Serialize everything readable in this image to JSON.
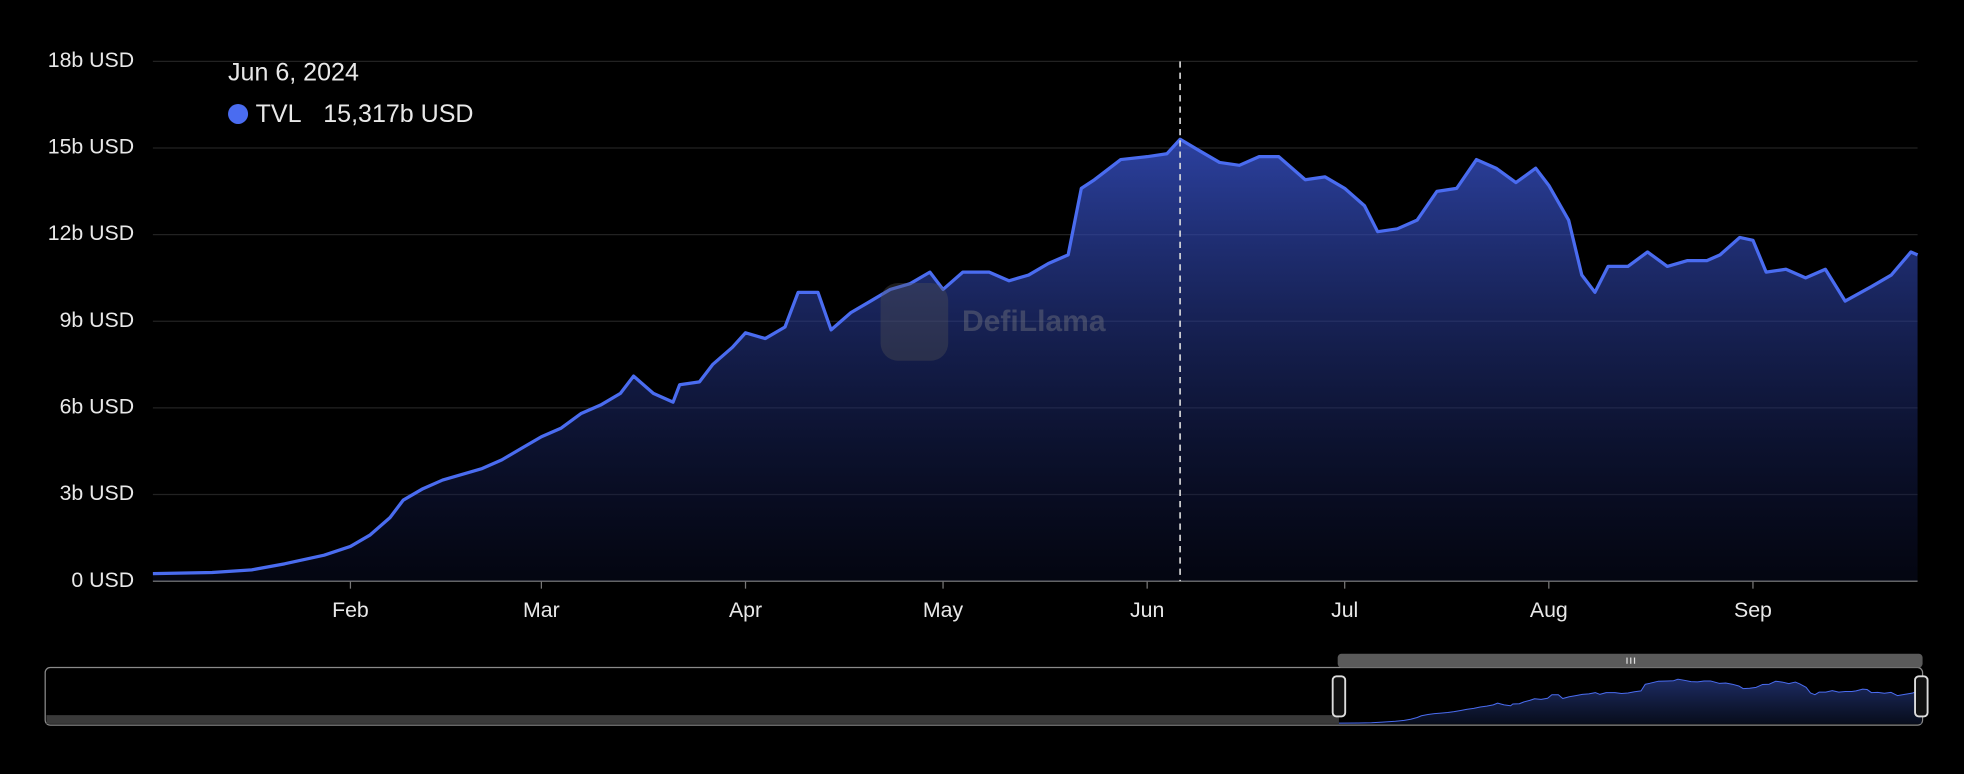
{
  "chart_data": {
    "type": "area",
    "watermark": "DefiLlama",
    "x": [
      2,
      11,
      17,
      22,
      28,
      32,
      35,
      38,
      40,
      43,
      46,
      49,
      52,
      55,
      58,
      61,
      64,
      67,
      70,
      73,
      75,
      78,
      81,
      82,
      85,
      87,
      90,
      92,
      95,
      98,
      100,
      103,
      105,
      108,
      111,
      114,
      117,
      120,
      122,
      125,
      129,
      132,
      135,
      138,
      141,
      143,
      145,
      149,
      153,
      156,
      158,
      161,
      164,
      167,
      170,
      173,
      177,
      180,
      183,
      186,
      188,
      191,
      194,
      197,
      200,
      203,
      206,
      209,
      212,
      214,
      217,
      219,
      221,
      223,
      226,
      229,
      232,
      235,
      238,
      240,
      243,
      245,
      247,
      250,
      253,
      256,
      259,
      263,
      266,
      269,
      270
    ],
    "series": [
      {
        "name": "TVL",
        "color": "#4a6cf0",
        "values": [
          0.26,
          0.3,
          0.39,
          0.6,
          0.9,
          1.2,
          1.6,
          2.2,
          2.8,
          3.2,
          3.5,
          3.7,
          3.9,
          4.2,
          4.6,
          5.0,
          5.3,
          5.8,
          6.1,
          6.5,
          7.1,
          6.5,
          6.2,
          6.8,
          6.9,
          7.5,
          8.1,
          8.6,
          8.4,
          8.8,
          10.0,
          10.0,
          8.7,
          9.3,
          9.7,
          10.1,
          10.3,
          10.7,
          10.1,
          10.7,
          10.7,
          10.4,
          10.6,
          11.0,
          11.3,
          13.6,
          13.9,
          14.6,
          14.7,
          14.8,
          15.3,
          14.9,
          14.5,
          14.4,
          14.7,
          14.7,
          13.9,
          14.0,
          13.6,
          13.0,
          12.1,
          12.2,
          12.5,
          13.5,
          13.6,
          14.6,
          14.3,
          13.8,
          14.3,
          13.7,
          12.5,
          10.6,
          10.0,
          10.9,
          10.9,
          11.4,
          10.9,
          11.1,
          11.1,
          11.3,
          11.9,
          11.8,
          10.7,
          10.8,
          10.5,
          10.8,
          9.7,
          10.2,
          10.6,
          11.4,
          11.3
        ]
      }
    ],
    "xlim": [
      2,
      270
    ],
    "xticks": [
      {
        "value": 32,
        "label": "Feb"
      },
      {
        "value": 61,
        "label": "Mar"
      },
      {
        "value": 92,
        "label": "Apr"
      },
      {
        "value": 122,
        "label": "May"
      },
      {
        "value": 153,
        "label": "Jun"
      },
      {
        "value": 183,
        "label": "Jul"
      },
      {
        "value": 214,
        "label": "Aug"
      },
      {
        "value": 245,
        "label": "Sep"
      }
    ],
    "ylim": [
      0,
      18
    ],
    "yticks": [
      {
        "value": 0,
        "label": "0 USD"
      },
      {
        "value": 3,
        "label": "3b USD"
      },
      {
        "value": 6,
        "label": "6b USD"
      },
      {
        "value": 9,
        "label": "9b USD"
      },
      {
        "value": 12,
        "label": "12b USD"
      },
      {
        "value": 15,
        "label": "15b USD"
      },
      {
        "value": 18,
        "label": "18b USD"
      }
    ],
    "grid": true,
    "tooltip": {
      "date": "Jun 6, 2024",
      "x": 158,
      "value": 15.317,
      "label": "15,317b USD"
    }
  }
}
